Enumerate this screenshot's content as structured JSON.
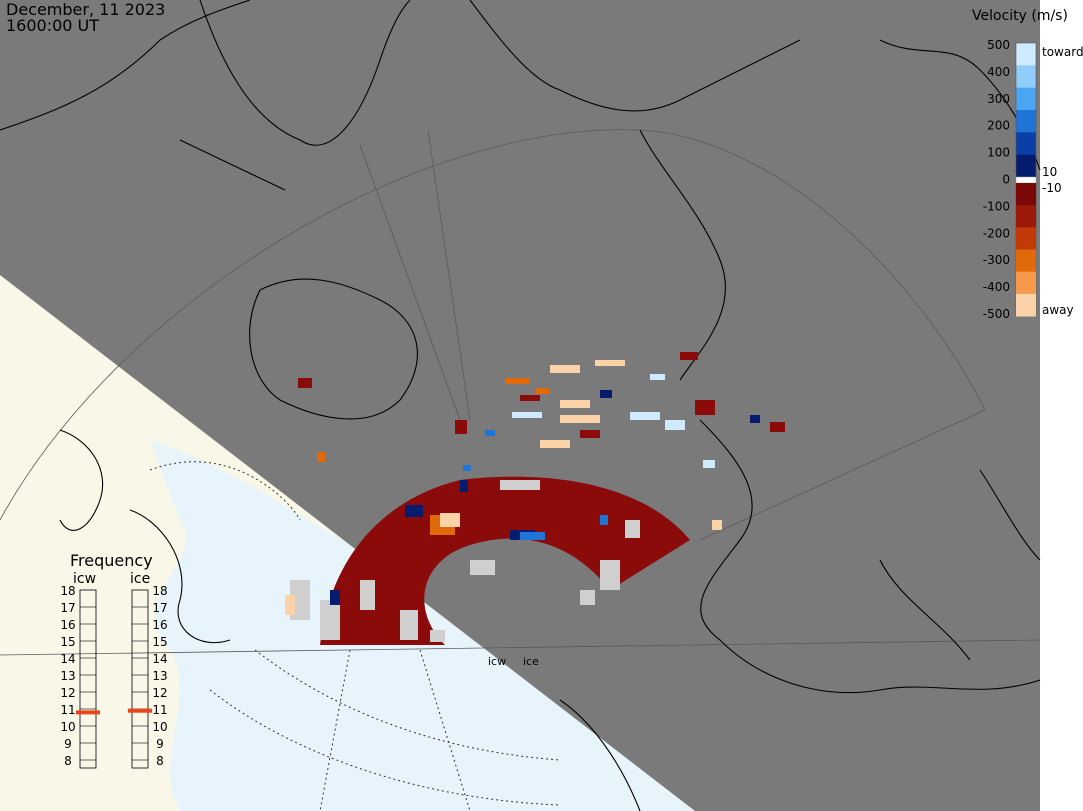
{
  "header": {
    "date": "December, 11 2023",
    "time": "1600:00 UT"
  },
  "colorbar": {
    "title": "Velocity (m/s)",
    "ticks": [
      "500",
      "400",
      "300",
      "200",
      "100",
      "0",
      "-100",
      "-200",
      "-300",
      "-400",
      "-500"
    ],
    "toward_label": "toward",
    "away_label": "away",
    "pos_threshold": "10",
    "neg_threshold": "-10",
    "colors": {
      "toward": [
        "#cfeaff",
        "#8fcdfb",
        "#4aa6f0",
        "#1f74d6",
        "#0b3fa6",
        "#061c6e"
      ],
      "away": [
        "#7a0a0a",
        "#9c1a0a",
        "#c23a08",
        "#e06a0a",
        "#f59a4a",
        "#fcd3a8"
      ]
    }
  },
  "frequency_panel": {
    "title": "Frequency",
    "columns": [
      {
        "name": "icw",
        "value": 10.8
      },
      {
        "name": "ice",
        "value": 10.9
      }
    ],
    "levels": [
      "18",
      "17",
      "16",
      "15",
      "14",
      "13",
      "12",
      "11",
      "10",
      "9",
      "8"
    ],
    "marker_color": "#e8461a"
  },
  "radar_sites": {
    "icw_label": "icw",
    "ice_label": "ice"
  },
  "colors": {
    "night": "#7a7a7a",
    "day_land": "#f8f7e8",
    "day_ocean": "#e8f4fc",
    "coastline": "#000000",
    "no_data_gray": "#cfcfcf"
  }
}
